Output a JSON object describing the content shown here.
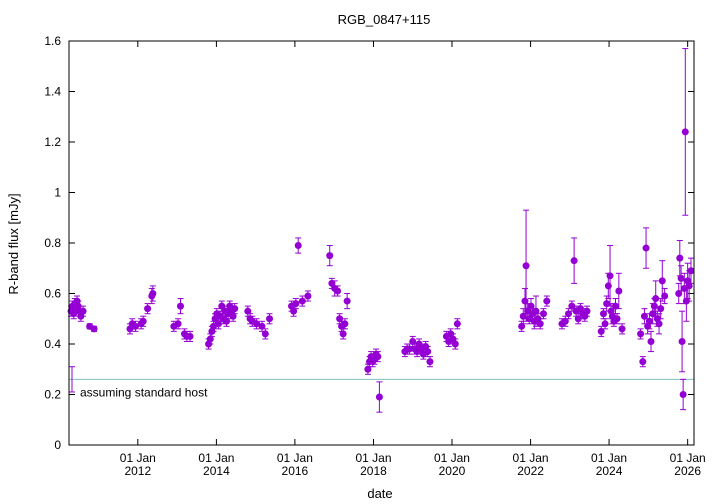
{
  "chart_data": {
    "type": "scatter",
    "title": "RGB_0847+115",
    "xlabel": "date",
    "ylabel": "R-band flux [mJy]",
    "ylim": [
      0,
      1.6
    ],
    "xlim": [
      "2010-04-01",
      "2026-03-01"
    ],
    "grid": false,
    "y_ticks": [
      "0",
      "0.2",
      "0.4",
      "0.6",
      "0.8",
      "1",
      "1.2",
      "1.4",
      "1.6"
    ],
    "x_ticks": [
      {
        "date": "2012-01-01",
        "line1": "01 Jan",
        "line2": "2012"
      },
      {
        "date": "2014-01-01",
        "line1": "01 Jan",
        "line2": "2014"
      },
      {
        "date": "2016-01-01",
        "line1": "01 Jan",
        "line2": "2016"
      },
      {
        "date": "2018-01-01",
        "line1": "01 Jan",
        "line2": "2018"
      },
      {
        "date": "2020-01-01",
        "line1": "01 Jan",
        "line2": "2020"
      },
      {
        "date": "2022-01-01",
        "line1": "01 Jan",
        "line2": "2022"
      },
      {
        "date": "2024-01-01",
        "line1": "01 Jan",
        "line2": "2024"
      },
      {
        "date": "2026-01-01",
        "line1": "01 Jan",
        "line2": "2026"
      }
    ],
    "host_level": {
      "value": 0.26,
      "label": "assuming standard host",
      "color": "#7fbfbf",
      "err": [
        0.21,
        0.31
      ]
    },
    "point_color": "#9400d3",
    "series": [
      {
        "points": [
          {
            "x": "2010-04-20",
            "y": 0.53,
            "e": 0.02
          },
          {
            "x": "2010-05-05",
            "y": 0.55,
            "e": 0.02
          },
          {
            "x": "2010-05-15",
            "y": 0.52,
            "e": 0.02
          },
          {
            "x": "2010-05-25",
            "y": 0.56,
            "e": 0.02
          },
          {
            "x": "2010-06-05",
            "y": 0.54,
            "e": 0.02
          },
          {
            "x": "2010-06-15",
            "y": 0.57,
            "e": 0.02
          },
          {
            "x": "2010-06-25",
            "y": 0.55,
            "e": 0.02
          },
          {
            "x": "2010-07-05",
            "y": 0.53,
            "e": 0.02
          },
          {
            "x": "2010-07-20",
            "y": 0.51,
            "e": 0.02
          },
          {
            "x": "2010-08-10",
            "y": 0.53,
            "e": 0.02
          },
          {
            "x": "2010-10-10",
            "y": 0.47,
            "e": 0.01
          },
          {
            "x": "2010-11-20",
            "y": 0.46,
            "e": 0.01
          },
          {
            "x": "2011-10-20",
            "y": 0.46,
            "e": 0.02
          },
          {
            "x": "2011-11-10",
            "y": 0.48,
            "e": 0.02
          },
          {
            "x": "2011-12-10",
            "y": 0.47,
            "e": 0.02
          },
          {
            "x": "2012-02-01",
            "y": 0.48,
            "e": 0.02
          },
          {
            "x": "2012-02-20",
            "y": 0.49,
            "e": 0.02
          },
          {
            "x": "2012-04-01",
            "y": 0.54,
            "e": 0.02
          },
          {
            "x": "2012-05-10",
            "y": 0.59,
            "e": 0.03
          },
          {
            "x": "2012-05-20",
            "y": 0.6,
            "e": 0.03
          },
          {
            "x": "2012-12-01",
            "y": 0.47,
            "e": 0.02
          },
          {
            "x": "2013-01-10",
            "y": 0.48,
            "e": 0.02
          },
          {
            "x": "2013-02-01",
            "y": 0.55,
            "e": 0.03
          },
          {
            "x": "2013-03-10",
            "y": 0.44,
            "e": 0.02
          },
          {
            "x": "2013-04-01",
            "y": 0.43,
            "e": 0.02
          },
          {
            "x": "2013-05-01",
            "y": 0.43,
            "e": 0.02
          },
          {
            "x": "2013-10-20",
            "y": 0.4,
            "e": 0.02
          },
          {
            "x": "2013-11-05",
            "y": 0.42,
            "e": 0.02
          },
          {
            "x": "2013-11-20",
            "y": 0.45,
            "e": 0.02
          },
          {
            "x": "2013-12-05",
            "y": 0.47,
            "e": 0.02
          },
          {
            "x": "2013-12-20",
            "y": 0.5,
            "e": 0.02
          },
          {
            "x": "2014-01-05",
            "y": 0.52,
            "e": 0.02
          },
          {
            "x": "2014-01-20",
            "y": 0.48,
            "e": 0.02
          },
          {
            "x": "2014-02-05",
            "y": 0.51,
            "e": 0.02
          },
          {
            "x": "2014-02-20",
            "y": 0.55,
            "e": 0.02
          },
          {
            "x": "2014-03-05",
            "y": 0.5,
            "e": 0.02
          },
          {
            "x": "2014-03-20",
            "y": 0.53,
            "e": 0.02
          },
          {
            "x": "2014-04-05",
            "y": 0.49,
            "e": 0.02
          },
          {
            "x": "2014-04-20",
            "y": 0.52,
            "e": 0.02
          },
          {
            "x": "2014-05-05",
            "y": 0.55,
            "e": 0.02
          },
          {
            "x": "2014-05-20",
            "y": 0.53,
            "e": 0.02
          },
          {
            "x": "2014-06-05",
            "y": 0.51,
            "e": 0.02
          },
          {
            "x": "2014-06-20",
            "y": 0.54,
            "e": 0.02
          },
          {
            "x": "2014-10-20",
            "y": 0.53,
            "e": 0.02
          },
          {
            "x": "2014-11-10",
            "y": 0.5,
            "e": 0.02
          },
          {
            "x": "2014-12-01",
            "y": 0.49,
            "e": 0.02
          },
          {
            "x": "2015-01-10",
            "y": 0.48,
            "e": 0.02
          },
          {
            "x": "2015-03-01",
            "y": 0.47,
            "e": 0.02
          },
          {
            "x": "2015-04-01",
            "y": 0.44,
            "e": 0.02
          },
          {
            "x": "2015-05-10",
            "y": 0.5,
            "e": 0.02
          },
          {
            "x": "2015-12-01",
            "y": 0.55,
            "e": 0.02
          },
          {
            "x": "2015-12-20",
            "y": 0.53,
            "e": 0.02
          },
          {
            "x": "2016-01-10",
            "y": 0.56,
            "e": 0.02
          },
          {
            "x": "2016-02-01",
            "y": 0.79,
            "e": 0.03
          },
          {
            "x": "2016-03-10",
            "y": 0.57,
            "e": 0.02
          },
          {
            "x": "2016-05-01",
            "y": 0.59,
            "e": 0.02
          },
          {
            "x": "2016-11-20",
            "y": 0.75,
            "e": 0.04
          },
          {
            "x": "2016-12-10",
            "y": 0.64,
            "e": 0.02
          },
          {
            "x": "2017-01-05",
            "y": 0.62,
            "e": 0.03
          },
          {
            "x": "2017-02-01",
            "y": 0.61,
            "e": 0.02
          },
          {
            "x": "2017-02-20",
            "y": 0.5,
            "e": 0.02
          },
          {
            "x": "2017-03-10",
            "y": 0.47,
            "e": 0.02
          },
          {
            "x": "2017-03-25",
            "y": 0.44,
            "e": 0.02
          },
          {
            "x": "2017-04-10",
            "y": 0.48,
            "e": 0.02
          },
          {
            "x": "2017-05-01",
            "y": 0.57,
            "e": 0.03
          },
          {
            "x": "2017-11-10",
            "y": 0.3,
            "e": 0.02
          },
          {
            "x": "2017-11-25",
            "y": 0.33,
            "e": 0.02
          },
          {
            "x": "2017-12-10",
            "y": 0.35,
            "e": 0.02
          },
          {
            "x": "2017-12-25",
            "y": 0.33,
            "e": 0.02
          },
          {
            "x": "2018-01-10",
            "y": 0.34,
            "e": 0.02
          },
          {
            "x": "2018-01-25",
            "y": 0.36,
            "e": 0.02
          },
          {
            "x": "2018-02-10",
            "y": 0.35,
            "e": 0.02
          },
          {
            "x": "2018-02-25",
            "y": 0.19,
            "e": 0.06
          },
          {
            "x": "2018-10-20",
            "y": 0.37,
            "e": 0.02
          },
          {
            "x": "2018-11-10",
            "y": 0.38,
            "e": 0.02
          },
          {
            "x": "2018-12-01",
            "y": 0.38,
            "e": 0.02
          },
          {
            "x": "2019-01-01",
            "y": 0.41,
            "e": 0.02
          },
          {
            "x": "2019-01-20",
            "y": 0.38,
            "e": 0.02
          },
          {
            "x": "2019-02-10",
            "y": 0.37,
            "e": 0.02
          },
          {
            "x": "2019-03-01",
            "y": 0.4,
            "e": 0.02
          },
          {
            "x": "2019-03-20",
            "y": 0.38,
            "e": 0.02
          },
          {
            "x": "2019-04-10",
            "y": 0.36,
            "e": 0.02
          },
          {
            "x": "2019-05-01",
            "y": 0.39,
            "e": 0.02
          },
          {
            "x": "2019-05-20",
            "y": 0.37,
            "e": 0.02
          },
          {
            "x": "2019-06-10",
            "y": 0.33,
            "e": 0.02
          },
          {
            "x": "2019-11-10",
            "y": 0.43,
            "e": 0.02
          },
          {
            "x": "2019-12-01",
            "y": 0.41,
            "e": 0.02
          },
          {
            "x": "2019-12-20",
            "y": 0.44,
            "e": 0.02
          },
          {
            "x": "2020-01-10",
            "y": 0.42,
            "e": 0.02
          },
          {
            "x": "2020-02-01",
            "y": 0.4,
            "e": 0.02
          },
          {
            "x": "2020-02-20",
            "y": 0.48,
            "e": 0.02
          },
          {
            "x": "2021-10-10",
            "y": 0.47,
            "e": 0.02
          },
          {
            "x": "2021-10-25",
            "y": 0.51,
            "e": 0.03
          },
          {
            "x": "2021-11-10",
            "y": 0.57,
            "e": 0.05
          },
          {
            "x": "2021-11-20",
            "y": 0.71,
            "e": 0.22
          },
          {
            "x": "2021-12-05",
            "y": 0.53,
            "e": 0.03
          },
          {
            "x": "2021-12-20",
            "y": 0.5,
            "e": 0.02
          },
          {
            "x": "2022-01-05",
            "y": 0.55,
            "e": 0.03
          },
          {
            "x": "2022-01-20",
            "y": 0.52,
            "e": 0.02
          },
          {
            "x": "2022-02-05",
            "y": 0.49,
            "e": 0.03
          },
          {
            "x": "2022-02-20",
            "y": 0.53,
            "e": 0.06
          },
          {
            "x": "2022-03-10",
            "y": 0.5,
            "e": 0.02
          },
          {
            "x": "2022-04-01",
            "y": 0.48,
            "e": 0.02
          },
          {
            "x": "2022-05-01",
            "y": 0.52,
            "e": 0.02
          },
          {
            "x": "2022-06-01",
            "y": 0.57,
            "e": 0.02
          },
          {
            "x": "2022-10-20",
            "y": 0.48,
            "e": 0.02
          },
          {
            "x": "2022-11-20",
            "y": 0.49,
            "e": 0.02
          },
          {
            "x": "2022-12-20",
            "y": 0.52,
            "e": 0.02
          },
          {
            "x": "2023-01-20",
            "y": 0.55,
            "e": 0.02
          },
          {
            "x": "2023-02-10",
            "y": 0.73,
            "e": 0.09
          },
          {
            "x": "2023-03-01",
            "y": 0.53,
            "e": 0.02
          },
          {
            "x": "2023-03-20",
            "y": 0.5,
            "e": 0.02
          },
          {
            "x": "2023-04-10",
            "y": 0.54,
            "e": 0.02
          },
          {
            "x": "2023-05-01",
            "y": 0.52,
            "e": 0.02
          },
          {
            "x": "2023-05-20",
            "y": 0.51,
            "e": 0.02
          },
          {
            "x": "2023-06-10",
            "y": 0.53,
            "e": 0.02
          },
          {
            "x": "2023-10-20",
            "y": 0.45,
            "e": 0.02
          },
          {
            "x": "2023-11-10",
            "y": 0.52,
            "e": 0.02
          },
          {
            "x": "2023-11-25",
            "y": 0.48,
            "e": 0.02
          },
          {
            "x": "2023-12-10",
            "y": 0.56,
            "e": 0.03
          },
          {
            "x": "2023-12-25",
            "y": 0.63,
            "e": 0.05
          },
          {
            "x": "2024-01-10",
            "y": 0.67,
            "e": 0.12
          },
          {
            "x": "2024-01-20",
            "y": 0.53,
            "e": 0.03
          },
          {
            "x": "2024-02-01",
            "y": 0.51,
            "e": 0.03
          },
          {
            "x": "2024-02-15",
            "y": 0.49,
            "e": 0.02
          },
          {
            "x": "2024-03-01",
            "y": 0.55,
            "e": 0.03
          },
          {
            "x": "2024-03-15",
            "y": 0.5,
            "e": 0.02
          },
          {
            "x": "2024-04-01",
            "y": 0.61,
            "e": 0.07
          },
          {
            "x": "2024-05-01",
            "y": 0.46,
            "e": 0.02
          },
          {
            "x": "2024-10-20",
            "y": 0.44,
            "e": 0.02
          },
          {
            "x": "2024-11-10",
            "y": 0.33,
            "e": 0.02
          },
          {
            "x": "2024-11-25",
            "y": 0.51,
            "e": 0.03
          },
          {
            "x": "2024-12-10",
            "y": 0.78,
            "e": 0.08
          },
          {
            "x": "2024-12-25",
            "y": 0.47,
            "e": 0.03
          },
          {
            "x": "2025-01-10",
            "y": 0.49,
            "e": 0.03
          },
          {
            "x": "2025-01-25",
            "y": 0.41,
            "e": 0.04
          },
          {
            "x": "2025-02-10",
            "y": 0.52,
            "e": 0.04
          },
          {
            "x": "2025-02-25",
            "y": 0.55,
            "e": 0.03
          },
          {
            "x": "2025-03-10",
            "y": 0.58,
            "e": 0.07
          },
          {
            "x": "2025-03-25",
            "y": 0.5,
            "e": 0.03
          },
          {
            "x": "2025-04-10",
            "y": 0.48,
            "e": 0.04
          },
          {
            "x": "2025-04-25",
            "y": 0.54,
            "e": 0.04
          },
          {
            "x": "2025-05-10",
            "y": 0.65,
            "e": 0.08
          },
          {
            "x": "2025-06-01",
            "y": 0.59,
            "e": 0.03
          },
          {
            "x": "2025-10-10",
            "y": 0.6,
            "e": 0.04
          },
          {
            "x": "2025-10-20",
            "y": 0.74,
            "e": 0.07
          },
          {
            "x": "2025-11-01",
            "y": 0.66,
            "e": 0.05
          },
          {
            "x": "2025-11-10",
            "y": 0.41,
            "e": 0.12
          },
          {
            "x": "2025-11-20",
            "y": 0.2,
            "e": 0.06
          },
          {
            "x": "2025-12-01",
            "y": 0.62,
            "e": 0.06
          },
          {
            "x": "2025-12-10",
            "y": 1.24,
            "e": 0.33
          },
          {
            "x": "2025-12-20",
            "y": 0.57,
            "e": 0.08
          },
          {
            "x": "2026-01-01",
            "y": 0.65,
            "e": 0.07
          },
          {
            "x": "2026-01-15",
            "y": 0.63,
            "e": 0.06
          },
          {
            "x": "2026-02-01",
            "y": 0.69,
            "e": 0.05
          }
        ]
      }
    ]
  }
}
